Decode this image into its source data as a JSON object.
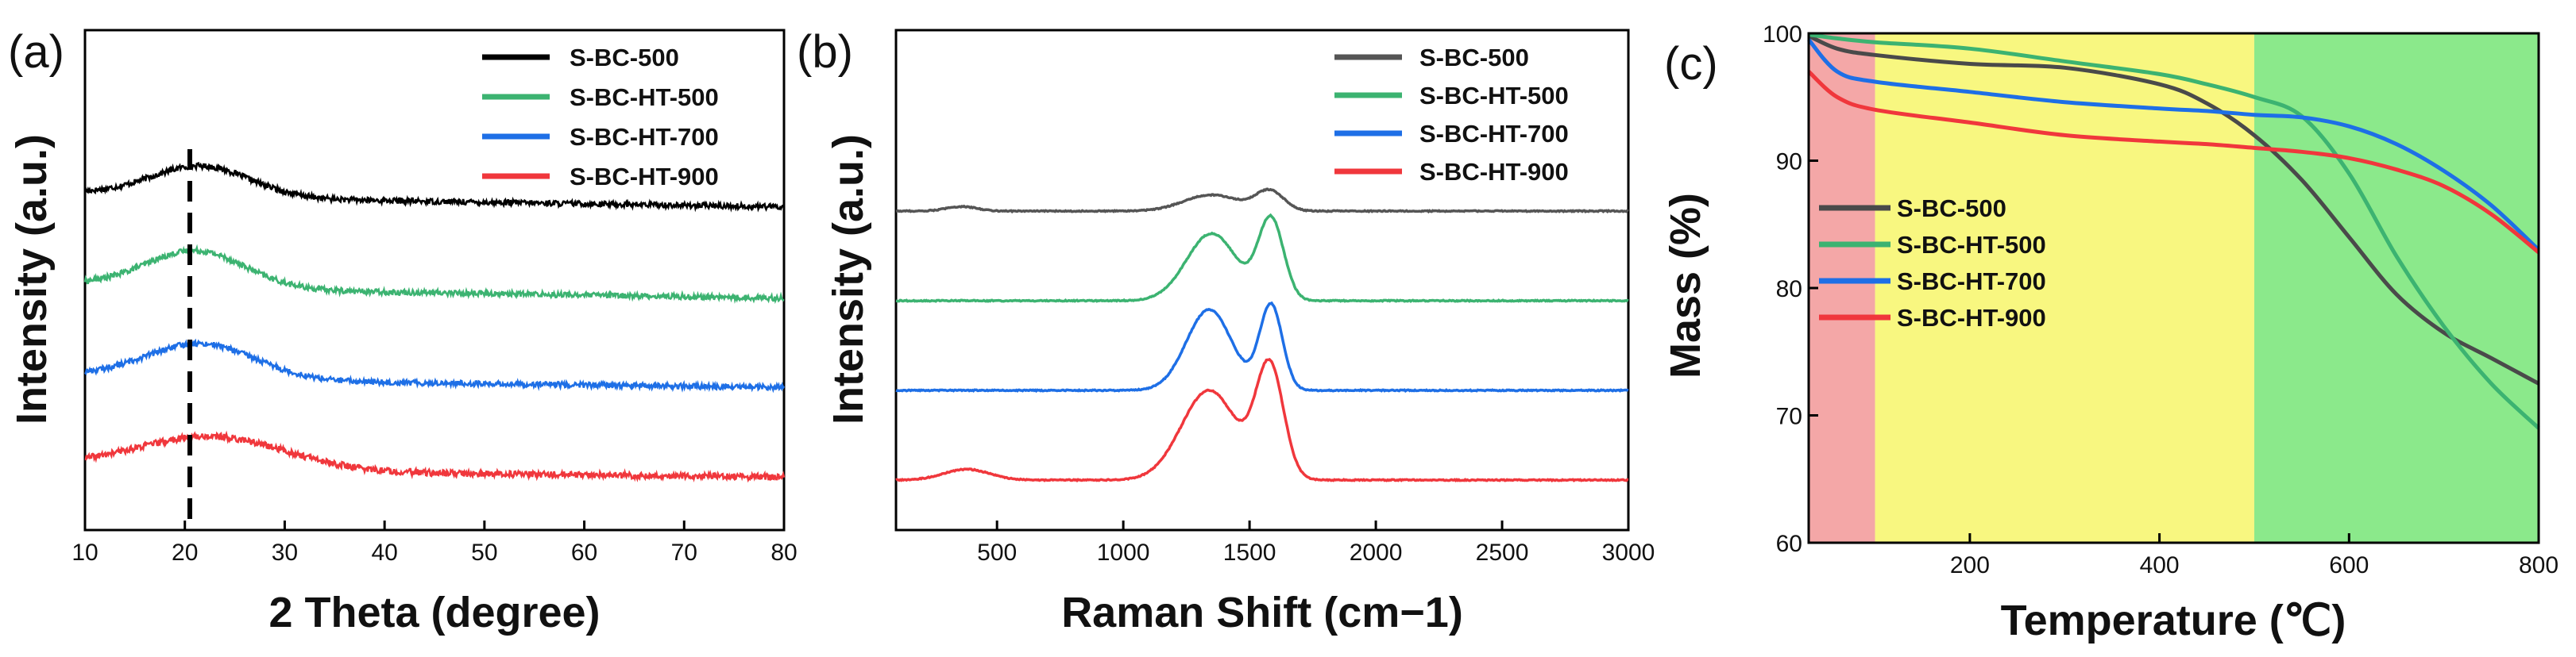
{
  "chart_data": [
    {
      "panel": "(a)",
      "type": "line",
      "xlabel": "2 Theta (degree)",
      "ylabel": "Intensity (a.u.)",
      "xlim": [
        10,
        80
      ],
      "xticks": [
        10,
        20,
        30,
        40,
        50,
        60,
        70,
        80
      ],
      "reference_line_x": 20.5,
      "legend_position": "top-right",
      "series": [
        {
          "name": "S-BC-500",
          "color": "#000000",
          "offset": 3.0,
          "peaks": [
            [
              21.5,
              0.35,
              5.0
            ]
          ],
          "baseline_slope": -0.12,
          "noise": 0.06
        },
        {
          "name": "S-BC-HT-500",
          "color": "#3cb371",
          "offset": 2.0,
          "peaks": [
            [
              21.0,
              0.42,
              5.0
            ]
          ],
          "baseline_slope": -0.12,
          "noise": 0.06
        },
        {
          "name": "S-BC-HT-700",
          "color": "#1e6fe6",
          "offset": 1.0,
          "peaks": [
            [
              21.5,
              0.4,
              5.5
            ]
          ],
          "baseline_slope": -0.1,
          "noise": 0.06
        },
        {
          "name": "S-BC-HT-900",
          "color": "#f0373c",
          "offset": 0.0,
          "peaks": [
            [
              22.5,
              0.38,
              7.5
            ]
          ],
          "baseline_slope": -0.08,
          "noise": 0.07
        }
      ]
    },
    {
      "panel": "(b)",
      "type": "line",
      "xlabel": "Raman Shift (cm−1)",
      "ylabel": "Intensity (a.u.)",
      "xlim": [
        100,
        3000
      ],
      "xticks": [
        500,
        1000,
        1500,
        2000,
        2500,
        3000
      ],
      "legend_position": "top-right",
      "series": [
        {
          "name": "S-BC-500",
          "color": "#555555",
          "offset": 3.0,
          "peaks": [
            [
              360,
              0.05,
              60
            ],
            [
              1350,
              0.18,
              110
            ],
            [
              1580,
              0.22,
              55
            ]
          ]
        },
        {
          "name": "S-BC-HT-500",
          "color": "#3cb371",
          "offset": 2.0,
          "peaks": [
            [
              1350,
              0.75,
              100
            ],
            [
              1585,
              0.9,
              50
            ]
          ]
        },
        {
          "name": "S-BC-HT-700",
          "color": "#1e6fe6",
          "offset": 1.0,
          "peaks": [
            [
              1340,
              0.9,
              90
            ],
            [
              1585,
              0.95,
              45
            ]
          ]
        },
        {
          "name": "S-BC-HT-900",
          "color": "#f0373c",
          "offset": 0.0,
          "peaks": [
            [
              380,
              0.12,
              90
            ],
            [
              1340,
              1.0,
              110
            ],
            [
              1580,
              1.25,
              55
            ]
          ]
        }
      ]
    },
    {
      "panel": "(c)",
      "type": "line",
      "xlabel": "Temperature (℃)",
      "ylabel": "Mass (%)",
      "xlim": [
        30,
        800
      ],
      "ylim": [
        60,
        100
      ],
      "xticks": [
        200,
        400,
        600,
        800
      ],
      "yticks": [
        60,
        70,
        80,
        90,
        100
      ],
      "regions": [
        {
          "from": 30,
          "to": 100,
          "color": "#f4a7a7"
        },
        {
          "from": 100,
          "to": 500,
          "color": "#f8f780"
        },
        {
          "from": 500,
          "to": 800,
          "color": "#8be98b"
        }
      ],
      "legend_position": "center-left",
      "series": [
        {
          "name": "S-BC-500",
          "color": "#4a4a4a",
          "x": [
            30,
            60,
            100,
            200,
            300,
            400,
            450,
            500,
            550,
            600,
            650,
            700,
            750,
            800
          ],
          "y": [
            99.8,
            98.8,
            98.3,
            97.6,
            97.3,
            96.0,
            94.5,
            92.0,
            88.5,
            84.0,
            79.5,
            76.5,
            74.5,
            72.5
          ]
        },
        {
          "name": "S-BC-HT-500",
          "color": "#3cb371",
          "x": [
            30,
            60,
            100,
            200,
            300,
            400,
            450,
            500,
            550,
            600,
            650,
            700,
            750,
            800
          ],
          "y": [
            99.9,
            99.6,
            99.3,
            98.8,
            97.8,
            96.8,
            96.0,
            95.0,
            93.5,
            89.0,
            82.5,
            77.0,
            72.5,
            69.0
          ]
        },
        {
          "name": "S-BC-HT-700",
          "color": "#1e6fe6",
          "x": [
            30,
            60,
            100,
            200,
            300,
            400,
            450,
            500,
            550,
            600,
            650,
            700,
            750,
            800
          ],
          "y": [
            99.5,
            97.0,
            96.2,
            95.4,
            94.6,
            94.1,
            93.9,
            93.6,
            93.4,
            92.7,
            91.3,
            89.2,
            86.5,
            83.0
          ]
        },
        {
          "name": "S-BC-HT-900",
          "color": "#f0373c",
          "x": [
            30,
            60,
            100,
            200,
            300,
            400,
            450,
            500,
            550,
            600,
            650,
            700,
            750,
            800
          ],
          "y": [
            97.0,
            95.0,
            94.0,
            93.0,
            92.0,
            91.5,
            91.3,
            91.0,
            90.7,
            90.2,
            89.3,
            88.0,
            85.8,
            82.8
          ]
        }
      ]
    }
  ]
}
